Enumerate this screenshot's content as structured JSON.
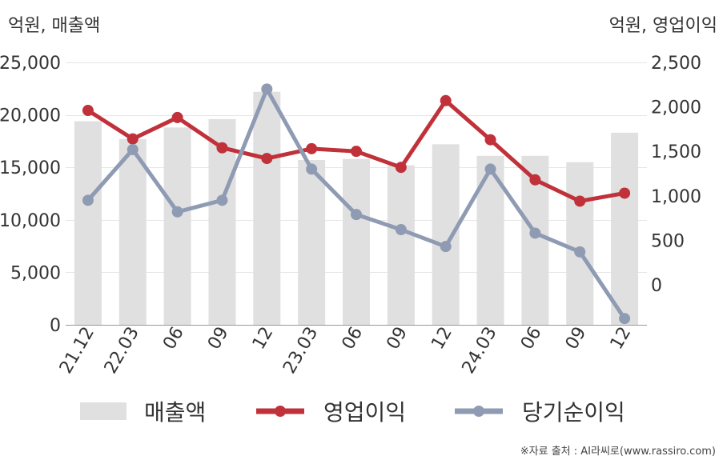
{
  "units": {
    "left": "억원, 매출액",
    "right": "억원, 영업이익"
  },
  "source": "※자료 출처 : AI라씨로(www.rassiro.com)",
  "legend": [
    {
      "label": "매출액",
      "color": "#e0e0e0",
      "kind": "bar"
    },
    {
      "label": "영업이익",
      "color": "#c0313a",
      "kind": "line"
    },
    {
      "label": "당기순이익",
      "color": "#8f9bb3",
      "kind": "line"
    }
  ],
  "chart_data": {
    "type": "bar+line",
    "categories": [
      "21.12",
      "22.03",
      "06",
      "09",
      "12",
      "23.03",
      "06",
      "09",
      "12",
      "24.03",
      "06",
      "09",
      "12"
    ],
    "left_axis": {
      "ticks": [
        0,
        5000,
        10000,
        15000,
        20000,
        25000
      ],
      "tick_labels": [
        "0",
        "5,000",
        "10,000",
        "15,000",
        "20,000",
        "25,000"
      ],
      "range": [
        0,
        25000
      ]
    },
    "right_axis": {
      "ticks": [
        0,
        500,
        1000,
        1500,
        2000,
        2500
      ],
      "tick_labels": [
        "0",
        "500",
        "1,000",
        "1,500",
        "2,000",
        "2,500"
      ],
      "range": [
        -450,
        2500
      ]
    },
    "series": [
      {
        "name": "매출액",
        "type": "bar",
        "axis": "left",
        "color": "#e0e0e0",
        "values": [
          19400,
          17700,
          18800,
          19600,
          22200,
          15700,
          15800,
          15200,
          17200,
          16100,
          16100,
          15500,
          18300
        ]
      },
      {
        "name": "영업이익",
        "type": "line",
        "axis": "right",
        "color": "#c0313a",
        "values": [
          1960,
          1640,
          1880,
          1540,
          1420,
          1530,
          1500,
          1320,
          2070,
          1630,
          1180,
          940,
          1030
        ]
      },
      {
        "name": "당기순이익",
        "type": "line",
        "axis": "right",
        "color": "#8f9bb3",
        "values": [
          950,
          1520,
          820,
          950,
          2200,
          1300,
          790,
          620,
          430,
          1300,
          580,
          370,
          -380
        ]
      }
    ]
  }
}
